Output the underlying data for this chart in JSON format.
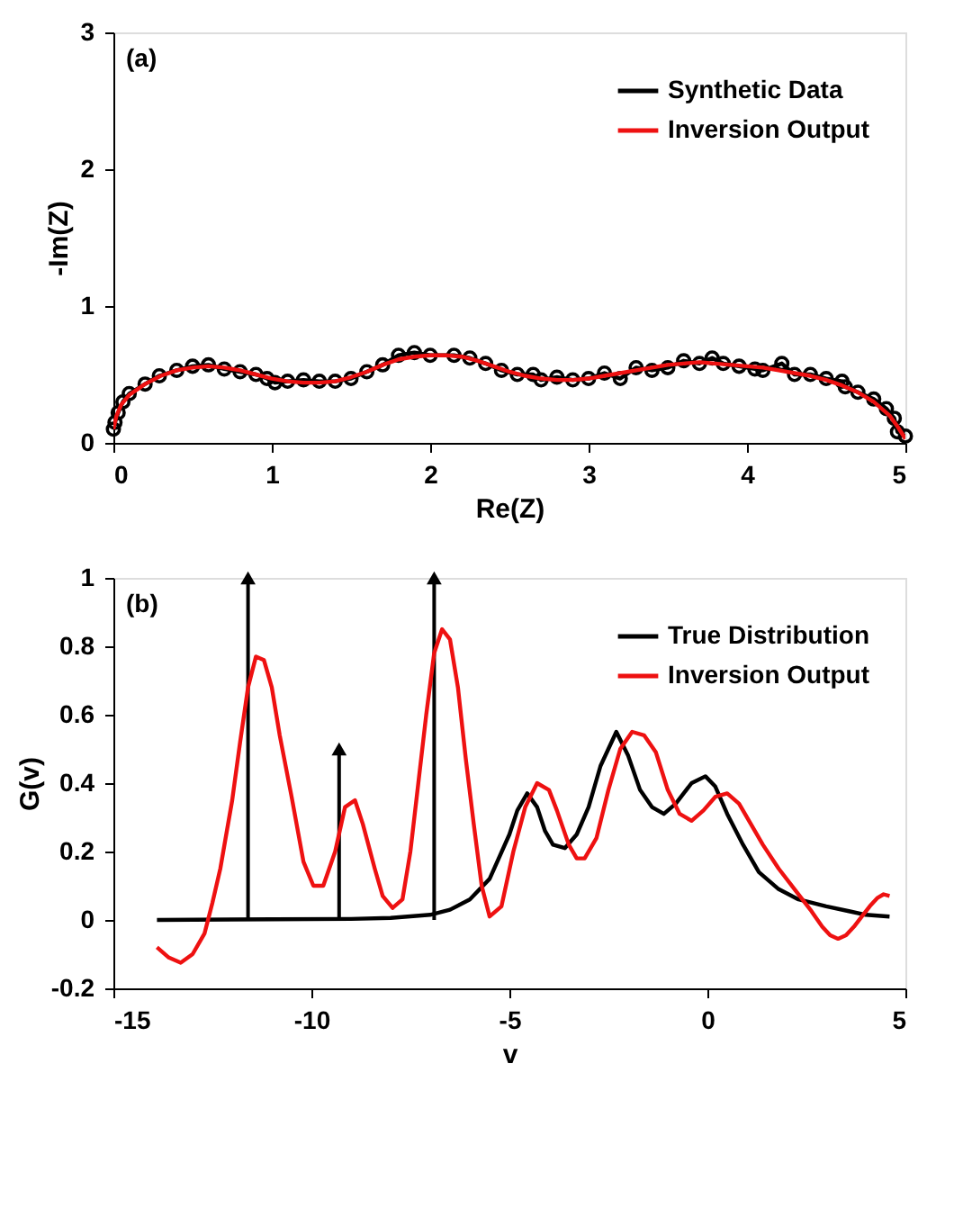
{
  "chart_data": [
    {
      "type": "line",
      "xlabel": "Re(Z)",
      "ylabel": "-Im(Z)",
      "annotations": [
        "(a)"
      ],
      "xlim": [
        0,
        5
      ],
      "xticks": [
        0,
        1,
        2,
        3,
        4,
        5
      ],
      "ylim": [
        0,
        3
      ],
      "yticks": [
        0,
        1,
        2,
        3
      ],
      "grid": false,
      "legend": "top right",
      "series": [
        {
          "name": "Synthetic Data",
          "color": "#000000",
          "marker": "circle",
          "x": [
            0.0,
            0.01,
            0.03,
            0.06,
            0.1,
            0.2,
            0.29,
            0.4,
            0.5,
            0.6,
            0.7,
            0.8,
            0.9,
            0.97,
            1.02,
            1.1,
            1.2,
            1.3,
            1.4,
            1.5,
            1.6,
            1.7,
            1.8,
            1.9,
            2.0,
            2.15,
            2.25,
            2.35,
            2.45,
            2.55,
            2.65,
            2.7,
            2.8,
            2.9,
            3.0,
            3.1,
            3.2,
            3.3,
            3.4,
            3.5,
            3.6,
            3.7,
            3.78,
            3.85,
            3.95,
            4.05,
            4.1,
            4.22,
            4.3,
            4.4,
            4.5,
            4.6,
            4.62,
            4.7,
            4.8,
            4.88,
            4.93,
            4.95,
            5.0
          ],
          "values": [
            0.1,
            0.15,
            0.22,
            0.3,
            0.36,
            0.43,
            0.49,
            0.53,
            0.56,
            0.57,
            0.54,
            0.52,
            0.5,
            0.47,
            0.44,
            0.45,
            0.46,
            0.45,
            0.45,
            0.47,
            0.52,
            0.57,
            0.64,
            0.66,
            0.64,
            0.64,
            0.62,
            0.58,
            0.53,
            0.5,
            0.5,
            0.46,
            0.48,
            0.46,
            0.47,
            0.51,
            0.47,
            0.55,
            0.53,
            0.55,
            0.6,
            0.58,
            0.62,
            0.58,
            0.56,
            0.54,
            0.53,
            0.58,
            0.5,
            0.5,
            0.47,
            0.45,
            0.41,
            0.37,
            0.32,
            0.25,
            0.18,
            0.08,
            0.05
          ]
        },
        {
          "name": "Inversion Output",
          "color": "#ee1111",
          "x": [
            0,
            0.02,
            0.05,
            0.1,
            0.2,
            0.3,
            0.4,
            0.5,
            0.6,
            0.7,
            0.8,
            0.9,
            1.0,
            1.1,
            1.2,
            1.3,
            1.4,
            1.5,
            1.6,
            1.7,
            1.8,
            1.9,
            2.0,
            2.1,
            2.2,
            2.3,
            2.4,
            2.5,
            2.6,
            2.7,
            2.8,
            2.9,
            3.0,
            3.1,
            3.2,
            3.3,
            3.4,
            3.5,
            3.6,
            3.7,
            3.8,
            3.9,
            4.0,
            4.1,
            4.2,
            4.3,
            4.4,
            4.5,
            4.6,
            4.7,
            4.8,
            4.9,
            4.95,
            5.0
          ],
          "values": [
            0.1,
            0.2,
            0.28,
            0.35,
            0.43,
            0.49,
            0.53,
            0.55,
            0.56,
            0.55,
            0.53,
            0.5,
            0.47,
            0.45,
            0.44,
            0.44,
            0.45,
            0.48,
            0.52,
            0.57,
            0.61,
            0.63,
            0.64,
            0.64,
            0.63,
            0.6,
            0.56,
            0.52,
            0.49,
            0.47,
            0.46,
            0.46,
            0.47,
            0.49,
            0.51,
            0.53,
            0.55,
            0.57,
            0.58,
            0.59,
            0.58,
            0.57,
            0.56,
            0.55,
            0.53,
            0.51,
            0.49,
            0.46,
            0.42,
            0.37,
            0.3,
            0.2,
            0.12,
            0.03
          ]
        }
      ]
    },
    {
      "type": "line",
      "xlabel": "v",
      "ylabel": "G(v)",
      "annotations": [
        "(b)"
      ],
      "xlim": [
        -15,
        5
      ],
      "xticks": [
        -15,
        -10,
        -5,
        0,
        5
      ],
      "ylim": [
        -0.2,
        1
      ],
      "yticks": [
        -0.2,
        0,
        0.2,
        0.4,
        0.6,
        0.8,
        1
      ],
      "grid": false,
      "legend": "top right",
      "series": [
        {
          "type": "lollipop",
          "color": "#000000",
          "marker": "triangle",
          "x": [
            -11.6,
            -9.3,
            -6.9
          ],
          "values": [
            1,
            0.5,
            1
          ]
        },
        {
          "name": "True Distribution",
          "color": "#000000",
          "x": [
            -13.9,
            -11,
            -9,
            -8,
            -7,
            -6.5,
            -6,
            -5.5,
            -5,
            -4.8,
            -4.55,
            -4.3,
            -4.1,
            -3.9,
            -3.6,
            -3.3,
            -3,
            -2.7,
            -2.3,
            -2.0,
            -1.7,
            -1.4,
            -1.1,
            -0.8,
            -0.4,
            -0.05,
            0.2,
            0.5,
            0.9,
            1.3,
            1.8,
            2.3,
            3,
            3.6,
            4.0,
            4.6
          ],
          "values": [
            0,
            0.002,
            0.003,
            0.006,
            0.015,
            0.03,
            0.06,
            0.12,
            0.25,
            0.32,
            0.37,
            0.33,
            0.26,
            0.22,
            0.21,
            0.25,
            0.33,
            0.45,
            0.55,
            0.48,
            0.38,
            0.33,
            0.31,
            0.34,
            0.4,
            0.42,
            0.39,
            0.31,
            0.22,
            0.14,
            0.09,
            0.06,
            0.04,
            0.025,
            0.015,
            0.01
          ]
        },
        {
          "name": "Inversion Output",
          "color": "#ee1111",
          "x": [
            -13.9,
            -13.6,
            -13.3,
            -13.0,
            -12.7,
            -12.5,
            -12.3,
            -12.0,
            -11.8,
            -11.6,
            -11.4,
            -11.2,
            -11.0,
            -10.8,
            -10.5,
            -10.2,
            -9.95,
            -9.7,
            -9.4,
            -9.15,
            -8.9,
            -8.7,
            -8.4,
            -8.2,
            -7.95,
            -7.7,
            -7.5,
            -7.3,
            -7.1,
            -6.9,
            -6.7,
            -6.5,
            -6.3,
            -6.1,
            -5.9,
            -5.7,
            -5.5,
            -5.2,
            -4.9,
            -4.6,
            -4.3,
            -4.0,
            -3.8,
            -3.5,
            -3.3,
            -3.1,
            -2.8,
            -2.5,
            -2.2,
            -1.9,
            -1.6,
            -1.3,
            -1.0,
            -0.7,
            -0.4,
            -0.1,
            0.2,
            0.5,
            0.8,
            1.1,
            1.4,
            1.8,
            2.2,
            2.6,
            2.9,
            3.1,
            3.3,
            3.5,
            3.7,
            3.9,
            4.1,
            4.3,
            4.45,
            4.6
          ],
          "values": [
            -0.08,
            -0.11,
            -0.125,
            -0.1,
            -0.04,
            0.05,
            0.15,
            0.35,
            0.52,
            0.68,
            0.77,
            0.76,
            0.68,
            0.54,
            0.36,
            0.17,
            0.1,
            0.1,
            0.2,
            0.33,
            0.35,
            0.28,
            0.15,
            0.07,
            0.035,
            0.06,
            0.2,
            0.4,
            0.6,
            0.78,
            0.85,
            0.82,
            0.68,
            0.47,
            0.28,
            0.1,
            0.01,
            0.04,
            0.2,
            0.33,
            0.4,
            0.38,
            0.32,
            0.22,
            0.18,
            0.18,
            0.24,
            0.38,
            0.5,
            0.55,
            0.54,
            0.49,
            0.38,
            0.31,
            0.29,
            0.32,
            0.36,
            0.37,
            0.34,
            0.28,
            0.22,
            0.15,
            0.09,
            0.03,
            -0.02,
            -0.045,
            -0.055,
            -0.045,
            -0.02,
            0.01,
            0.04,
            0.065,
            0.075,
            0.07
          ]
        }
      ]
    }
  ]
}
